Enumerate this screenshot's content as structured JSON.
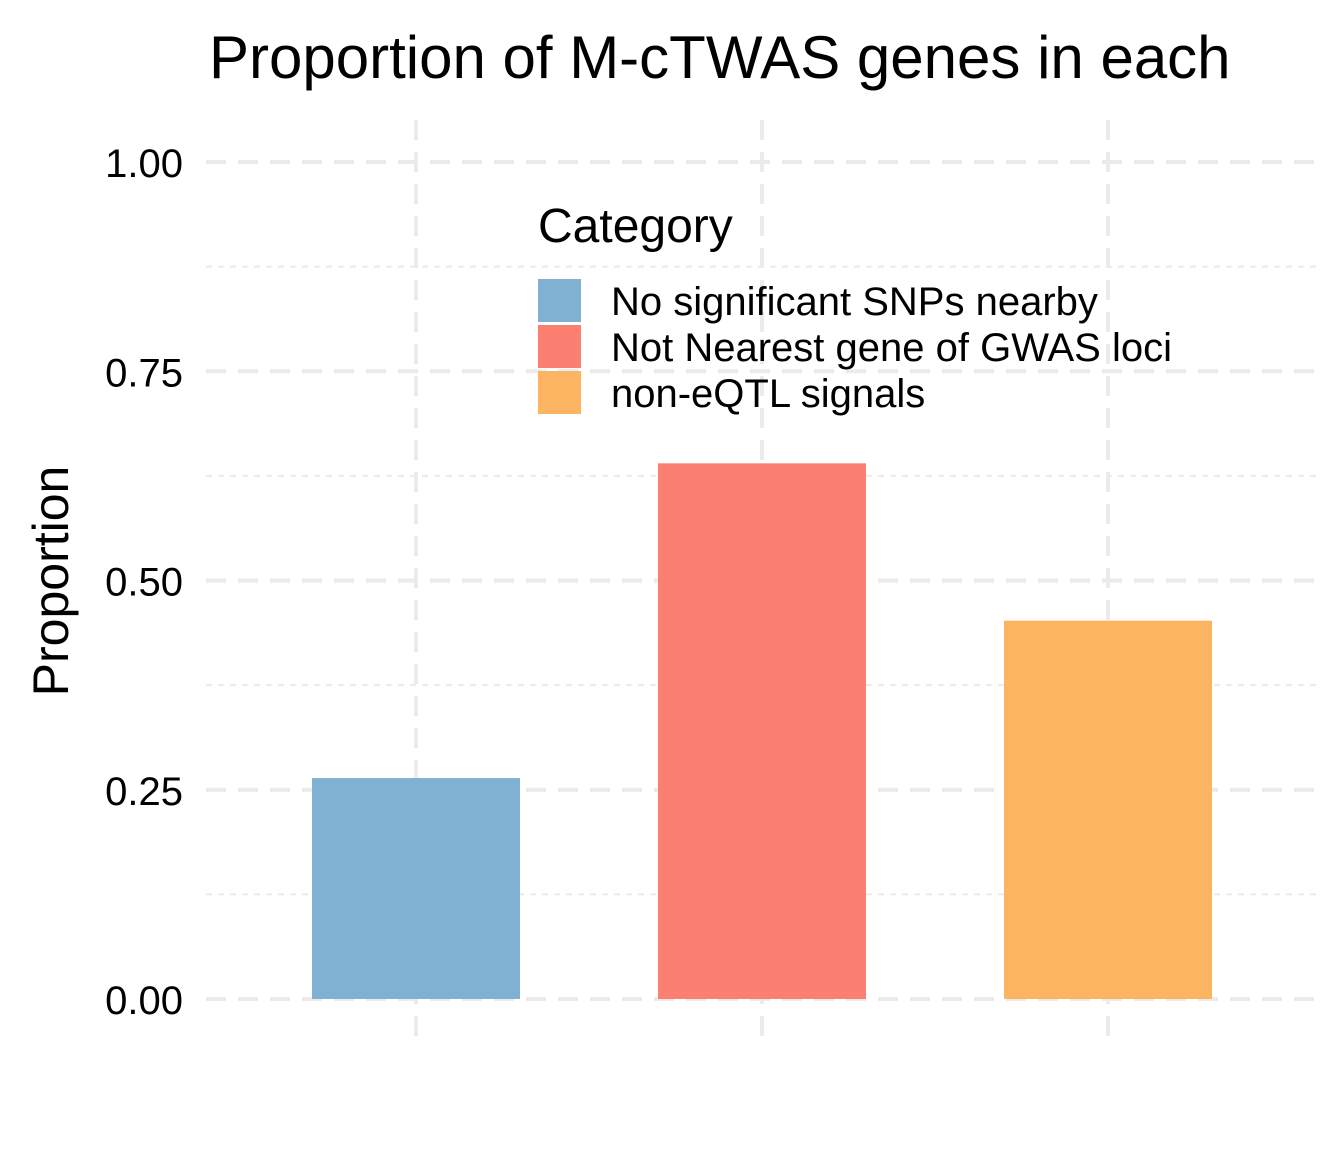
{
  "chart_data": {
    "type": "bar",
    "title": "Proportion of M-cTWAS genes in each",
    "xlabel": "",
    "ylabel": "Proportion",
    "categories": [
      "No significant SNPs nearby",
      "Not Nearest gene of GWAS loci",
      "non-eQTL signals"
    ],
    "values": [
      0.264,
      0.64,
      0.452
    ],
    "colors": [
      "#80B1D3",
      "#FB8072",
      "#FDB462"
    ],
    "ylim": [
      0,
      1
    ],
    "y_ticks": [
      0,
      0.25,
      0.5,
      0.75,
      1
    ],
    "y_tick_labels": [
      "0.00",
      "0.25",
      "0.50",
      "0.75",
      "1.00"
    ],
    "grid": true,
    "grid_style": "dashed",
    "legend": {
      "title": "Category",
      "placement": "top-right (inside plot)",
      "entries": [
        "No significant SNPs nearby",
        "Not Nearest gene of GWAS loci",
        "non-eQTL signals"
      ]
    }
  }
}
